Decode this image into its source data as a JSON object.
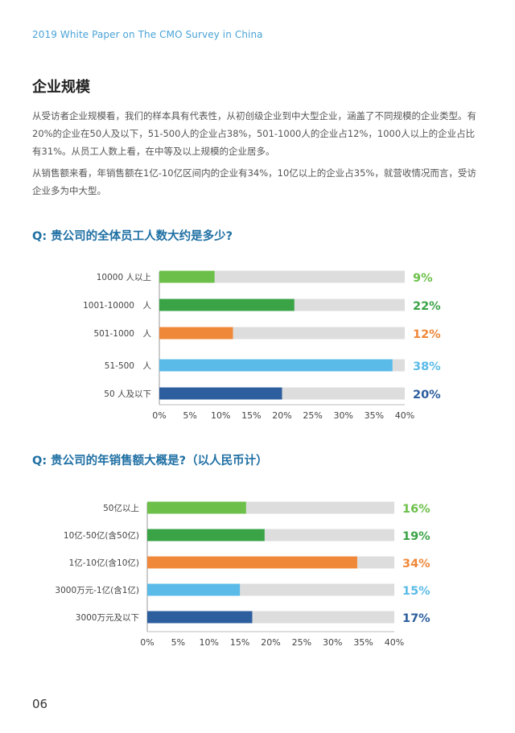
{
  "header": {
    "title": "2019 White Paper on The CMO Survey in China"
  },
  "section": {
    "title": "企业规模",
    "paragraphs": [
      "从受访者企业规模看，我们的样本具有代表性，从初创级企业到中大型企业，涵盖了不同规模的企业类型。有20%的企业在50人及以下，51-500人的企业占38%，501-1000人的企业占12%，1000人以上的企业占比有31%。从员工人数上看，在中等及以上规模的企业居多。",
      "从销售额来看，年销售额在1亿-10亿区间内的企业有34%，10亿以上的企业占35%，就营收情况而言，受访企业多为中大型。"
    ]
  },
  "questions": {
    "q1": "Q: 贵公司的全体员工人数大约是多少?",
    "q2": "Q: 贵公司的年销售额大概是?（以人民币计）"
  },
  "chart_data": [
    {
      "type": "bar",
      "orientation": "horizontal",
      "categories": [
        "10000 人以上",
        "1001-10000　人",
        "501-1000　人",
        "51-500　人",
        "50 人及以下"
      ],
      "values": [
        9,
        22,
        12,
        38,
        20
      ],
      "value_labels": [
        "9%",
        "22%",
        "12%",
        "38%",
        "20%"
      ],
      "colors": [
        "#6cc04a",
        "#3aa346",
        "#f0883a",
        "#5bbbe8",
        "#2d5e9e"
      ],
      "background_color": "#dddddd",
      "xlim": [
        0,
        40
      ],
      "xticks": [
        "0%",
        "5%",
        "10%",
        "15%",
        "20%",
        "25%",
        "30%",
        "35%",
        "40%"
      ]
    },
    {
      "type": "bar",
      "orientation": "horizontal",
      "categories": [
        "50亿以上",
        "10亿-50亿(含50亿)",
        "1亿-10亿(含10亿)",
        "3000万元-1亿(含1亿)",
        "3000万元及以下"
      ],
      "values": [
        16,
        19,
        34,
        15,
        17
      ],
      "value_labels": [
        "16%",
        "19%",
        "34%",
        "15%",
        "17%"
      ],
      "colors": [
        "#6cc04a",
        "#3aa346",
        "#f0883a",
        "#5bbbe8",
        "#2d5e9e"
      ],
      "background_color": "#dddddd",
      "xlim": [
        0,
        40
      ],
      "xticks": [
        "0%",
        "5%",
        "10%",
        "15%",
        "20%",
        "25%",
        "30%",
        "35%",
        "40%"
      ]
    }
  ],
  "footer": {
    "page_number": "06"
  }
}
